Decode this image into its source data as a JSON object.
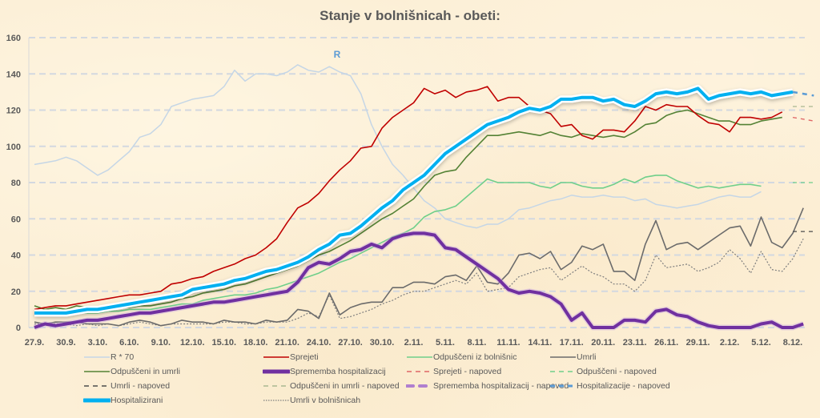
{
  "chart_data": {
    "type": "line",
    "title": "Stanje v bolnišnicah - obeti:",
    "annotation": "R",
    "xlabel": "",
    "ylabel": "",
    "ylim": [
      0,
      160
    ],
    "yticks": [
      0,
      20,
      40,
      60,
      80,
      100,
      120,
      140,
      160
    ],
    "grid": true,
    "legend_position": "bottom",
    "x_start": "27.9.",
    "x_end": "8.12.",
    "xtick_labels": [
      "27.9.",
      "30.9.",
      "3.10.",
      "6.10.",
      "9.10.",
      "12.10.",
      "15.10.",
      "18.10.",
      "21.10.",
      "24.10.",
      "27.10.",
      "30.10.",
      "2.11.",
      "5.11.",
      "8.11.",
      "11.11.",
      "14.11.",
      "17.11.",
      "20.11.",
      "23.11.",
      "26.11.",
      "29.11.",
      "2.12.",
      "5.12.",
      "8.12."
    ],
    "xtick_step_days": 3,
    "num_days": 73,
    "series": [
      {
        "name": "R * 70",
        "color": "#c5d6e6",
        "width": 1.5,
        "dash": "",
        "start_day": 0,
        "values": [
          90,
          91,
          92,
          94,
          92,
          88,
          84,
          87,
          92,
          97,
          105,
          107,
          112,
          122,
          124,
          126,
          127,
          128,
          133,
          142,
          136,
          140,
          140,
          139,
          141,
          145,
          142,
          141,
          144,
          141,
          139,
          129,
          112,
          100,
          90,
          84,
          77,
          70,
          66,
          60,
          58,
          56,
          55,
          57,
          57,
          60,
          65,
          66,
          68,
          70,
          71,
          73,
          72,
          72,
          73,
          72,
          72,
          70,
          71,
          68,
          67,
          66,
          67,
          68,
          70,
          72,
          73,
          72,
          72,
          75
        ]
      },
      {
        "name": "Sprejeti",
        "color": "#c00000",
        "width": 1.6,
        "dash": "",
        "start_day": 0,
        "values": [
          10,
          11,
          12,
          12,
          13,
          14,
          15,
          16,
          17,
          18,
          18,
          19,
          20,
          24,
          25,
          27,
          28,
          31,
          33,
          35,
          38,
          40,
          44,
          49,
          58,
          66,
          69,
          74,
          81,
          87,
          92,
          99,
          100,
          110,
          116,
          120,
          124,
          132,
          129,
          131,
          127,
          130,
          131,
          133,
          125,
          127,
          127,
          122,
          120,
          118,
          111,
          112,
          106,
          104,
          109,
          109,
          108,
          114,
          122,
          120,
          123,
          122,
          122,
          117,
          113,
          112,
          108,
          116,
          116,
          115,
          116,
          119
        ]
      },
      {
        "name": "Odpuščeni iz bolnišnic",
        "color": "#6fcf8a",
        "width": 1.6,
        "dash": "",
        "start_day": 0,
        "values": [
          9,
          8,
          8,
          8,
          8,
          8,
          8,
          9,
          9,
          10,
          10,
          10,
          11,
          12,
          13,
          13,
          15,
          16,
          17,
          18,
          18,
          19,
          21,
          22,
          24,
          26,
          28,
          30,
          33,
          36,
          38,
          41,
          44,
          47,
          50,
          52,
          55,
          61,
          64,
          65,
          67,
          72,
          77,
          82,
          80,
          80,
          80,
          80,
          78,
          77,
          80,
          80,
          78,
          77,
          77,
          79,
          82,
          80,
          83,
          84,
          84,
          81,
          79,
          77,
          78,
          77,
          78,
          79,
          79,
          78
        ]
      },
      {
        "name": "Umrli",
        "color": "#6b6b6b",
        "width": 1.6,
        "dash": "",
        "start_day": 0,
        "values": [
          3,
          2,
          3,
          3,
          3,
          2,
          2,
          2,
          1,
          3,
          4,
          3,
          1,
          2,
          4,
          3,
          3,
          2,
          4,
          3,
          3,
          2,
          4,
          3,
          4,
          10,
          9,
          5,
          19,
          7,
          11,
          13,
          14,
          14,
          22,
          22,
          25,
          25,
          24,
          28,
          29,
          26,
          34,
          25,
          24,
          30,
          40,
          41,
          38,
          42,
          32,
          36,
          45,
          43,
          46,
          31,
          31,
          26,
          46,
          59,
          43,
          46,
          47,
          43,
          47,
          51,
          55,
          56,
          45,
          61,
          47,
          44,
          52,
          66
        ]
      },
      {
        "name": "Odpuščeni in umrli",
        "color": "#548235",
        "width": 1.6,
        "dash": "",
        "start_day": 0,
        "values": [
          12,
          10,
          11,
          10,
          12,
          11,
          10,
          10,
          11,
          11,
          12,
          12,
          13,
          14,
          16,
          17,
          19,
          20,
          21,
          23,
          24,
          26,
          28,
          30,
          32,
          34,
          37,
          40,
          42,
          45,
          48,
          52,
          56,
          60,
          63,
          67,
          71,
          78,
          84,
          86,
          87,
          94,
          100,
          106,
          106,
          107,
          108,
          107,
          106,
          108,
          106,
          105,
          107,
          106,
          105,
          106,
          105,
          108,
          112,
          113,
          117,
          119,
          120,
          118,
          116,
          114,
          114,
          112,
          112,
          114,
          115,
          116
        ]
      },
      {
        "name": "Sprememba hospitalizacij",
        "color": "#7030a0",
        "width": 4,
        "dash": "",
        "start_day": 0,
        "values": [
          -1,
          2,
          1,
          2,
          3,
          4,
          4,
          5,
          6,
          7,
          8,
          8,
          9,
          10,
          11,
          12,
          13,
          14,
          14,
          15,
          16,
          17,
          18,
          19,
          20,
          25,
          33,
          36,
          35,
          38,
          42,
          43,
          46,
          44,
          49,
          51,
          52,
          52,
          51,
          44,
          43,
          39,
          35,
          31,
          27,
          21,
          19,
          20,
          19,
          17,
          13,
          4,
          8,
          -1,
          -1,
          -1,
          4,
          4,
          3,
          9,
          10,
          7,
          6,
          3,
          1,
          0,
          -1,
          -2,
          -1,
          2,
          3,
          0,
          0,
          2
        ]
      },
      {
        "name": "Hospitalizirani",
        "color": "#00b0f0",
        "width": 4,
        "dash": "",
        "start_day": 0,
        "values": [
          8,
          8,
          8,
          8,
          9,
          10,
          10,
          11,
          12,
          13,
          14,
          15,
          16,
          17,
          18,
          21,
          22,
          23,
          24,
          26,
          27,
          29,
          31,
          32,
          34,
          36,
          39,
          43,
          46,
          51,
          52,
          56,
          61,
          66,
          70,
          76,
          80,
          84,
          90,
          96,
          100,
          104,
          108,
          112,
          114,
          116,
          119,
          121,
          120,
          122,
          126,
          126,
          127,
          127,
          125,
          126,
          123,
          122,
          125,
          129,
          130,
          129,
          130,
          132,
          126,
          128,
          129,
          130,
          129,
          130,
          128,
          129,
          130
        ]
      },
      {
        "name": "Umrli v bolnišnicah",
        "color": "#7f7f7f",
        "width": 1.2,
        "dash": "2,2",
        "start_day": 0,
        "values": [
          2,
          2,
          2,
          2,
          1,
          2,
          1,
          2,
          1,
          2,
          3,
          2,
          1,
          2,
          2,
          2,
          2,
          2,
          3,
          3,
          2,
          2,
          3,
          3,
          3,
          5,
          8,
          6,
          18,
          5,
          6,
          8,
          10,
          13,
          15,
          18,
          20,
          20,
          22,
          24,
          26,
          24,
          30,
          20,
          21,
          22,
          28,
          30,
          32,
          33,
          26,
          30,
          34,
          30,
          28,
          24,
          24,
          20,
          26,
          40,
          33,
          34,
          35,
          31,
          33,
          36,
          43,
          38,
          30,
          42,
          32,
          31,
          38,
          49
        ]
      },
      {
        "name": "Sprejeti - napoved",
        "color": "#e06666",
        "width": 1.3,
        "dash": "5,5",
        "start_day": 72,
        "values": [
          116,
          115,
          114
        ]
      },
      {
        "name": "Odpuščeni - napoved",
        "color": "#6fcf8a",
        "width": 1.3,
        "dash": "5,5",
        "start_day": 72,
        "values": [
          80,
          80,
          80
        ]
      },
      {
        "name": "Umrli - napoved",
        "color": "#4d4d4d",
        "width": 1.3,
        "dash": "5,5",
        "start_day": 72,
        "values": [
          53,
          53,
          53
        ]
      },
      {
        "name": "Odpuščeni in umrli - napoved",
        "color": "#a9b891",
        "width": 1.3,
        "dash": "5,5",
        "start_day": 72,
        "values": [
          122,
          122,
          122
        ]
      },
      {
        "name": "Spremememba hospitalizacij - napoved",
        "color": "#b07fcf",
        "width": 3,
        "dash": "8,8",
        "start_day": 72,
        "values": []
      },
      {
        "name": "Hospitalizacije - napoved",
        "color": "#5b9bd5",
        "width": 2.5,
        "dash": "6,6",
        "start_day": 72,
        "values": [
          130,
          129,
          128
        ]
      }
    ]
  },
  "legend": {
    "items": [
      {
        "label": "R * 70",
        "color": "#c5d6e6",
        "style": "solid",
        "thickness": 1.5
      },
      {
        "label": "Sprejeti",
        "color": "#c00000",
        "style": "solid",
        "thickness": 1.5
      },
      {
        "label": "Odpuščeni iz bolnišnic",
        "color": "#6fcf8a",
        "style": "solid",
        "thickness": 1.5
      },
      {
        "label": "Umrli",
        "color": "#6b6b6b",
        "style": "solid",
        "thickness": 1.5
      },
      {
        "label": "Odpuščeni in umrli",
        "color": "#548235",
        "style": "solid",
        "thickness": 1.5
      },
      {
        "label": "Sprememba hospitalizacij",
        "color": "#7030a0",
        "style": "solid",
        "thickness": 5
      },
      {
        "label": "Sprejeti - napoved",
        "color": "#e06666",
        "style": "dashed",
        "thickness": 1.5
      },
      {
        "label": "Odpuščeni - napoved",
        "color": "#6fcf8a",
        "style": "dashed",
        "thickness": 1.5
      },
      {
        "label": "Umrli - napoved",
        "color": "#4d4d4d",
        "style": "dashed",
        "thickness": 1.5
      },
      {
        "label": "Odpuščeni in umrli - napoved",
        "color": "#a9b891",
        "style": "dashed",
        "thickness": 1.5
      },
      {
        "label": "Sprememba hospitalizacij - napoved",
        "color": "#b07fcf",
        "style": "dashed",
        "thickness": 4
      },
      {
        "label": "Hospitalizacije - napoved",
        "color": "#5b9bd5",
        "style": "dashed",
        "thickness": 3
      },
      {
        "label": "Hospitalizirani",
        "color": "#00b0f0",
        "style": "solid",
        "thickness": 5
      },
      {
        "label": "Umrli v bolnišnicah",
        "color": "#7f7f7f",
        "style": "dotted",
        "thickness": 1.2
      }
    ]
  }
}
